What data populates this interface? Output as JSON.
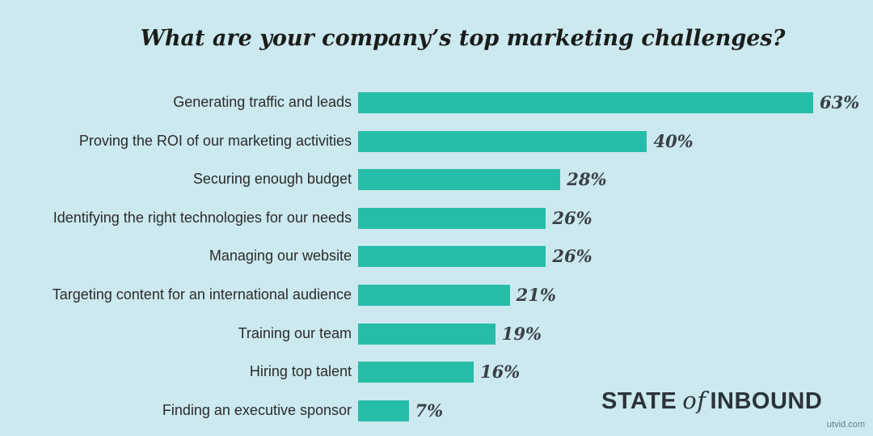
{
  "colors": {
    "background": "#cbe9ef",
    "bar": "#26bda8",
    "brand": "#2b333a"
  },
  "chart_data": {
    "type": "bar",
    "orientation": "horizontal",
    "title": "What are your company’s top marketing challenges?",
    "categories": [
      "Generating traffic and leads",
      "Proving the ROI of our marketing activities",
      "Securing enough budget",
      "Identifying the right technologies for our needs",
      "Managing our website",
      "Targeting content for an international audience",
      "Training our team",
      "Hiring top talent",
      "Finding an executive sponsor"
    ],
    "values": [
      63,
      40,
      28,
      26,
      26,
      21,
      19,
      16,
      7
    ],
    "value_labels": [
      "63%",
      "40%",
      "28%",
      "26%",
      "26%",
      "21%",
      "19%",
      "16%",
      "7%"
    ],
    "unit": "%",
    "xlim": [
      0,
      63
    ],
    "grid": false,
    "legend": "none"
  },
  "branding": {
    "part1": "STATE",
    "part2": "of",
    "part3": "INBOUND"
  },
  "watermark": "utvid.com"
}
